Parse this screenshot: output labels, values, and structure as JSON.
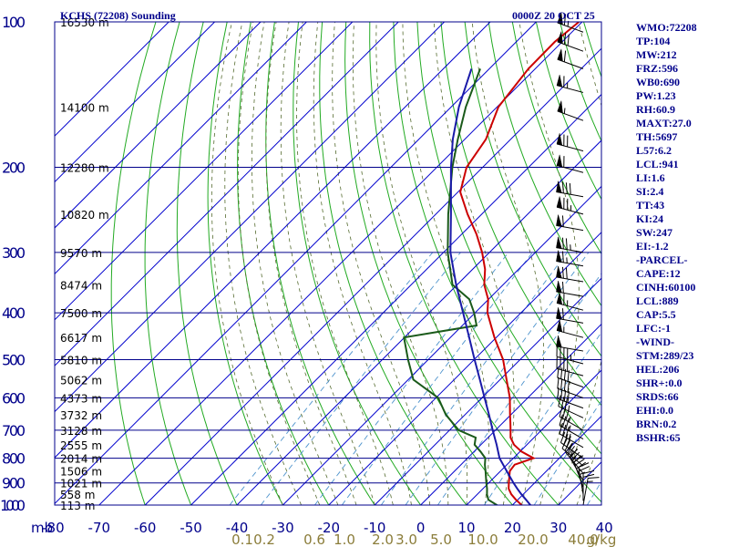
{
  "header": {
    "title": "KCHS (72208) Sounding",
    "datetime": "0000Z 20 OCT 25"
  },
  "indices": [
    "WMO:72208",
    "TP:104",
    "MW:212",
    "FRZ:596",
    "WB0:690",
    "PW:1.23",
    "RH:60.9",
    "MAXT:27.0",
    "TH:5697",
    "L57:6.2",
    "LCL:941",
    "LI:1.6",
    "SI:2.4",
    "TT:43",
    "KI:24",
    "SW:247",
    "EI:-1.2",
    "-PARCEL-",
    "CAPE:12",
    "CINH:60100",
    "LCL:889",
    "CAP:5.5",
    "LFC:-1",
    "-WIND-",
    "STM:289/23",
    "HEL:206",
    "SHR+:0.0",
    "SRDS:66",
    "EHI:0.0",
    "BRN:0.2",
    "BSHR:65"
  ],
  "colors": {
    "frame": "#00008b",
    "isobar": "#00008b",
    "isotherm": "#0000cd",
    "dry_adiabat": "#22aa22",
    "moist_adiabat": "#556b2f",
    "mixing_ratio": "#4f94cd",
    "temperature": "#cc0000",
    "dewpoint": "#1a5a1a",
    "parcel": "#1a1aa8",
    "pressure_label": "#00008b",
    "temp_label": "#00008b",
    "mixing_label": "#8b7d3a",
    "height_label": "#000000",
    "wind_barb": "#000000"
  },
  "chart_data": {
    "type": "skew-t",
    "pressure_axis_label": "mb",
    "pressure_levels": [
      100,
      200,
      300,
      400,
      500,
      600,
      700,
      800,
      900,
      1000
    ],
    "temperature_ticks": [
      -80,
      -70,
      -60,
      -50,
      -40,
      -30,
      -20,
      -10,
      0,
      10,
      20,
      30,
      40
    ],
    "mixing_ratio_labels": [
      "0.1",
      "0.2",
      "0.6",
      "1.0",
      "2.0",
      "3.0",
      "5.0",
      "10.0",
      "20.0",
      "40.0",
      "g/kg"
    ],
    "height_labels": [
      {
        "p": 100,
        "label": "16530 m"
      },
      {
        "p": 150,
        "label": "14100 m"
      },
      {
        "p": 200,
        "label": "12280 m"
      },
      {
        "p": 250,
        "label": "10820 m"
      },
      {
        "p": 300,
        "label": "9570 m"
      },
      {
        "p": 350,
        "label": "8474 m"
      },
      {
        "p": 400,
        "label": "7500 m"
      },
      {
        "p": 450,
        "label": "6617 m"
      },
      {
        "p": 500,
        "label": "5810 m"
      },
      {
        "p": 550,
        "label": "5062 m"
      },
      {
        "p": 600,
        "label": "4373 m"
      },
      {
        "p": 650,
        "label": "3732 m"
      },
      {
        "p": 700,
        "label": "3128 m"
      },
      {
        "p": 750,
        "label": "2555 m"
      },
      {
        "p": 800,
        "label": "2014 m"
      },
      {
        "p": 850,
        "label": "1506 m"
      },
      {
        "p": 900,
        "label": "1021 m"
      },
      {
        "p": 950,
        "label": "558 m"
      },
      {
        "p": 1000,
        "label": "113 m"
      }
    ],
    "series": [
      {
        "key": "temperature",
        "points": [
          [
            1012,
            22.3
          ],
          [
            1000,
            22.0
          ],
          [
            975,
            19.6
          ],
          [
            950,
            17.4
          ],
          [
            925,
            15.6
          ],
          [
            900,
            14.4
          ],
          [
            850,
            12.0
          ],
          [
            825,
            11.7
          ],
          [
            800,
            14.4
          ],
          [
            775,
            10.3
          ],
          [
            750,
            7.2
          ],
          [
            725,
            4.9
          ],
          [
            700,
            3.3
          ],
          [
            675,
            1.6
          ],
          [
            650,
            -0.2
          ],
          [
            600,
            -3.9
          ],
          [
            550,
            -8.6
          ],
          [
            500,
            -13.7
          ],
          [
            450,
            -20.4
          ],
          [
            400,
            -27.3
          ],
          [
            375,
            -30.1
          ],
          [
            350,
            -34.1
          ],
          [
            325,
            -37.3
          ],
          [
            300,
            -41.6
          ],
          [
            275,
            -46.8
          ],
          [
            250,
            -53.1
          ],
          [
            225,
            -59.5
          ],
          [
            200,
            -63.5
          ],
          [
            175,
            -65.4
          ],
          [
            150,
            -69.7
          ],
          [
            125,
            -71.5
          ],
          [
            110,
            -71.6
          ],
          [
            100,
            -70.7
          ]
        ]
      },
      {
        "key": "dewpoint",
        "points": [
          [
            1012,
            17.5
          ],
          [
            1000,
            16.6
          ],
          [
            975,
            13.6
          ],
          [
            950,
            12.1
          ],
          [
            925,
            10.9
          ],
          [
            900,
            9.5
          ],
          [
            850,
            6.7
          ],
          [
            825,
            5.2
          ],
          [
            800,
            3.9
          ],
          [
            775,
            1.4
          ],
          [
            750,
            -1.4
          ],
          [
            725,
            -2.7
          ],
          [
            700,
            -8.0
          ],
          [
            650,
            -14.2
          ],
          [
            600,
            -19.5
          ],
          [
            550,
            -28.9
          ],
          [
            500,
            -34.4
          ],
          [
            450,
            -40.1
          ],
          [
            425,
            -26.9
          ],
          [
            400,
            -30.2
          ],
          [
            375,
            -34.2
          ],
          [
            350,
            -41.0
          ],
          [
            300,
            -49.1
          ],
          [
            250,
            -57.3
          ],
          [
            200,
            -66.6
          ],
          [
            175,
            -71.5
          ],
          [
            150,
            -76.8
          ],
          [
            125,
            -82.0
          ]
        ]
      },
      {
        "key": "parcel",
        "points": [
          [
            1012,
            24.9
          ],
          [
            1000,
            23.9
          ],
          [
            975,
            21.8
          ],
          [
            950,
            19.6
          ],
          [
            925,
            17.5
          ],
          [
            900,
            15.4
          ],
          [
            850,
            11.3
          ],
          [
            800,
            7.0
          ],
          [
            750,
            3.4
          ],
          [
            700,
            -0.6
          ],
          [
            650,
            -4.8
          ],
          [
            600,
            -9.4
          ],
          [
            550,
            -14.4
          ],
          [
            500,
            -19.9
          ],
          [
            450,
            -25.9
          ],
          [
            400,
            -32.6
          ],
          [
            350,
            -40.2
          ],
          [
            300,
            -48.5
          ],
          [
            250,
            -56.7
          ],
          [
            200,
            -66.9
          ],
          [
            175,
            -72.6
          ],
          [
            150,
            -78.3
          ],
          [
            125,
            -83.9
          ]
        ]
      }
    ],
    "wind_barbs": [
      {
        "p": 105,
        "dir": 290,
        "spd": 65
      },
      {
        "p": 115,
        "dir": 290,
        "spd": 70
      },
      {
        "p": 125,
        "dir": 290,
        "spd": 60
      },
      {
        "p": 140,
        "dir": 285,
        "spd": 65
      },
      {
        "p": 160,
        "dir": 290,
        "spd": 55
      },
      {
        "p": 185,
        "dir": 285,
        "spd": 70
      },
      {
        "p": 205,
        "dir": 285,
        "spd": 60
      },
      {
        "p": 230,
        "dir": 280,
        "spd": 80
      },
      {
        "p": 250,
        "dir": 285,
        "spd": 75
      },
      {
        "p": 270,
        "dir": 280,
        "spd": 60
      },
      {
        "p": 300,
        "dir": 280,
        "spd": 75
      },
      {
        "p": 320,
        "dir": 280,
        "spd": 65
      },
      {
        "p": 345,
        "dir": 280,
        "spd": 70
      },
      {
        "p": 370,
        "dir": 280,
        "spd": 60
      },
      {
        "p": 395,
        "dir": 285,
        "spd": 65
      },
      {
        "p": 420,
        "dir": 280,
        "spd": 60
      },
      {
        "p": 450,
        "dir": 285,
        "spd": 55
      },
      {
        "p": 480,
        "dir": 280,
        "spd": 50
      },
      {
        "p": 510,
        "dir": 285,
        "spd": 45
      },
      {
        "p": 540,
        "dir": 285,
        "spd": 40
      },
      {
        "p": 570,
        "dir": 290,
        "spd": 40
      },
      {
        "p": 600,
        "dir": 290,
        "spd": 40
      },
      {
        "p": 630,
        "dir": 290,
        "spd": 40
      },
      {
        "p": 660,
        "dir": 295,
        "spd": 35
      },
      {
        "p": 700,
        "dir": 300,
        "spd": 35
      },
      {
        "p": 730,
        "dir": 300,
        "spd": 35
      },
      {
        "p": 760,
        "dir": 300,
        "spd": 35
      },
      {
        "p": 800,
        "dir": 305,
        "spd": 35
      },
      {
        "p": 830,
        "dir": 310,
        "spd": 35
      },
      {
        "p": 860,
        "dir": 320,
        "spd": 35
      },
      {
        "p": 890,
        "dir": 330,
        "spd": 30
      },
      {
        "p": 920,
        "dir": 340,
        "spd": 30
      },
      {
        "p": 950,
        "dir": 350,
        "spd": 25
      },
      {
        "p": 980,
        "dir": 360,
        "spd": 20
      },
      {
        "p": 1000,
        "dir": 10,
        "spd": 15
      }
    ]
  }
}
